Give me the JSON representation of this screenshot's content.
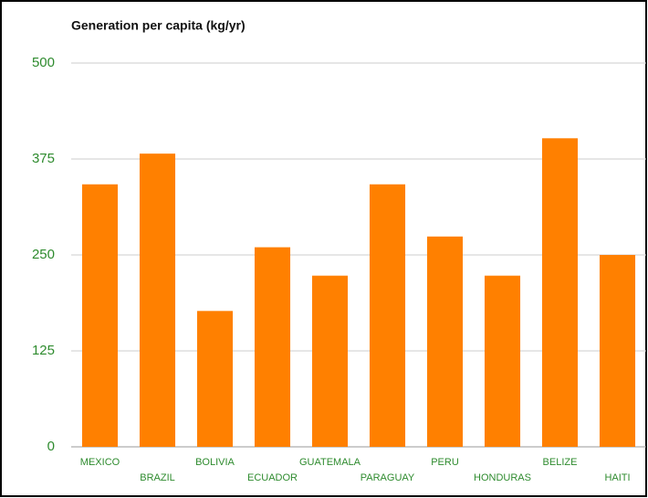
{
  "chart_data": {
    "type": "bar",
    "title": "Generation per capita (kg/yr)",
    "categories": [
      "MEXICO",
      "BRAZIL",
      "BOLIVIA",
      "ECUADOR",
      "GUATEMALA",
      "PARAGUAY",
      "PERU",
      "HONDURAS",
      "BELIZE",
      "HAITI"
    ],
    "values": [
      342,
      382,
      177,
      260,
      223,
      342,
      274,
      223,
      402,
      250
    ],
    "color": "#ff8000",
    "ylim": [
      0,
      500
    ],
    "yticks": [
      0,
      125,
      250,
      375,
      500
    ],
    "grid": true
  }
}
